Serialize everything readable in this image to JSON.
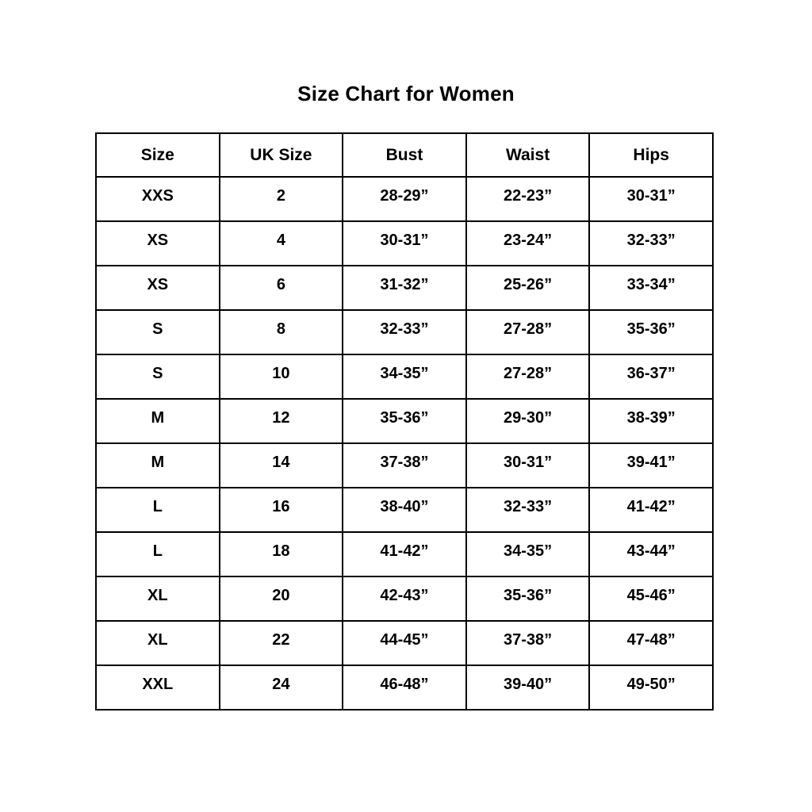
{
  "page": {
    "title": "Size Chart for Women"
  },
  "colors": {
    "background": "#ffffff",
    "text": "#000000",
    "border": "#000000"
  },
  "chart_data": {
    "type": "table",
    "title": "Size Chart for Women",
    "columns": [
      "Size",
      "UK Size",
      "Bust",
      "Waist",
      "Hips"
    ],
    "rows": [
      [
        "XXS",
        "2",
        "28-29”",
        "22-23”",
        "30-31”"
      ],
      [
        "XS",
        "4",
        "30-31”",
        "23-24”",
        "32-33”"
      ],
      [
        "XS",
        "6",
        "31-32”",
        "25-26”",
        "33-34”"
      ],
      [
        "S",
        "8",
        "32-33”",
        "27-28”",
        "35-36”"
      ],
      [
        "S",
        "10",
        "34-35”",
        "27-28”",
        "36-37”"
      ],
      [
        "M",
        "12",
        "35-36”",
        "29-30”",
        "38-39”"
      ],
      [
        "M",
        "14",
        "37-38”",
        "30-31”",
        "39-41”"
      ],
      [
        "L",
        "16",
        "38-40”",
        "32-33”",
        "41-42”"
      ],
      [
        "L",
        "18",
        "41-42”",
        "34-35”",
        "43-44”"
      ],
      [
        "XL",
        "20",
        "42-43”",
        "35-36”",
        "45-46”"
      ],
      [
        "XL",
        "22",
        "44-45”",
        "37-38”",
        "47-48”"
      ],
      [
        "XXL",
        "24",
        "46-48”",
        "39-40”",
        "49-50”"
      ]
    ],
    "layout": {
      "grid": true,
      "header_row": true,
      "text_style": "bold"
    }
  }
}
